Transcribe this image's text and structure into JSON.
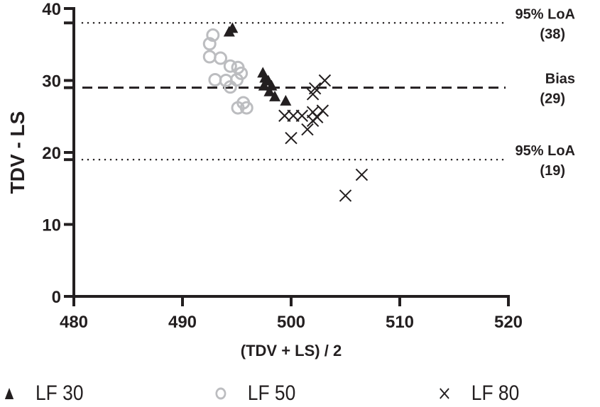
{
  "chart_data": {
    "type": "scatter",
    "title": "",
    "xlabel": "(TDV + LS) / 2",
    "ylabel": "TDV - LS",
    "xlim": [
      480,
      520
    ],
    "ylim": [
      0,
      40
    ],
    "xticks": [
      480,
      490,
      500,
      510,
      520
    ],
    "yticks": [
      0,
      10,
      20,
      30,
      40
    ],
    "grid": false,
    "legend_position": "bottom",
    "reference_lines": [
      {
        "name": "upper-loa",
        "y": 38,
        "style": "dotted",
        "label_line1": "95% LoA",
        "label_line2": "(38)"
      },
      {
        "name": "bias",
        "y": 29,
        "style": "dashed",
        "label_line1": "Bias",
        "label_line2": "(29)"
      },
      {
        "name": "lower-loa",
        "y": 19,
        "style": "dotted",
        "label_line1": "95% LoA",
        "label_line2": "(19)"
      }
    ],
    "series": [
      {
        "name": "LF 30",
        "marker": "triangle",
        "color": "#231f20",
        "points": [
          [
            494.3,
            36.7
          ],
          [
            494.6,
            37.2
          ],
          [
            497.4,
            31.0
          ],
          [
            497.6,
            30.3
          ],
          [
            497.9,
            29.9
          ],
          [
            497.5,
            29.2
          ],
          [
            498.2,
            29.2
          ],
          [
            498.0,
            28.4
          ],
          [
            498.5,
            27.7
          ],
          [
            499.5,
            27.1
          ]
        ]
      },
      {
        "name": "LF 50",
        "marker": "circle-open",
        "color": "#bcbdc0",
        "points": [
          [
            492.8,
            36.3
          ],
          [
            492.5,
            35.1
          ],
          [
            492.5,
            33.3
          ],
          [
            493.5,
            33.1
          ],
          [
            494.4,
            32.0
          ],
          [
            495.1,
            31.8
          ],
          [
            495.4,
            31.0
          ],
          [
            493.0,
            30.1
          ],
          [
            494.0,
            30.0
          ],
          [
            495.0,
            30.1
          ],
          [
            494.4,
            29.1
          ],
          [
            495.1,
            26.2
          ],
          [
            495.9,
            26.2
          ],
          [
            495.6,
            26.9
          ]
        ]
      },
      {
        "name": "LF 80",
        "marker": "cross",
        "color": "#231f20",
        "points": [
          [
            503.1,
            30.0
          ],
          [
            502.2,
            28.9
          ],
          [
            502.0,
            28.1
          ],
          [
            499.4,
            25.1
          ],
          [
            500.2,
            25.1
          ],
          [
            501.0,
            25.1
          ],
          [
            502.0,
            25.6
          ],
          [
            502.9,
            25.8
          ],
          [
            502.4,
            24.9
          ],
          [
            502.0,
            24.4
          ],
          [
            501.5,
            23.2
          ],
          [
            500.0,
            22.0
          ],
          [
            506.5,
            16.9
          ],
          [
            505.0,
            14.0
          ]
        ]
      }
    ]
  },
  "legend": {
    "items": [
      {
        "label": "LF 30",
        "marker": "triangle"
      },
      {
        "label": "LF 50",
        "marker": "circle-open"
      },
      {
        "label": "LF 80",
        "marker": "cross"
      }
    ]
  }
}
